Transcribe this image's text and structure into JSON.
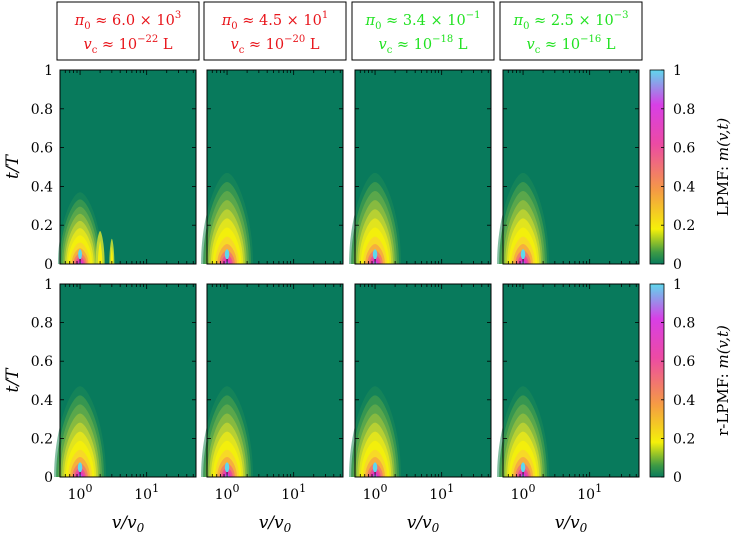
{
  "chart_data": {
    "type": "heatmap",
    "xlabel": "v/v_0",
    "ylabel": "t/T",
    "x_scale": "log",
    "xlim": [
      0.5,
      55
    ],
    "ylim": [
      0,
      1
    ],
    "xticks": [
      1,
      10
    ],
    "yticks": [
      0,
      0.2,
      0.4,
      0.6,
      0.8,
      1
    ],
    "colorbar": {
      "ticks": [
        0,
        0.2,
        0.4,
        0.6,
        0.8,
        1
      ],
      "rows": [
        {
          "label": "LPMF: m(v,t)"
        },
        {
          "label": "r-LPMF: m(v,t)"
        }
      ]
    },
    "colors": {
      "background": "#087a5c",
      "yellow": "#f5f00a",
      "orange": "#f59a45",
      "magenta": "#e532c0",
      "cyan": "#5fd8ec",
      "red_text": "#e8151b",
      "green_text": "#22e222"
    },
    "columns": [
      {
        "pi0_text": "π₀ ≈ 6.0 × 10³",
        "pi0_mant": "6.0",
        "pi0_exp": "3",
        "vc_exp": "−22",
        "text_color": "red"
      },
      {
        "pi0_text": "π₀ ≈ 4.5 × 10¹",
        "pi0_mant": "4.5",
        "pi0_exp": "1",
        "vc_exp": "−20",
        "text_color": "red"
      },
      {
        "pi0_text": "π₀ ≈ 3.4 × 10⁻¹",
        "pi0_mant": "3.4",
        "pi0_exp": "−1",
        "vc_exp": "−18",
        "text_color": "green"
      },
      {
        "pi0_text": "π₀ ≈ 2.5 × 10⁻³",
        "pi0_mant": "2.5",
        "pi0_exp": "−3",
        "vc_exp": "−16",
        "text_color": "green"
      }
    ],
    "peak": {
      "v_over_v0": 1.0,
      "t_over_T": 0.05,
      "value": 1
    },
    "plume_extent_t": {
      "LPMF_col1": 0.37,
      "others": 0.47
    },
    "secondary_peaks_LPMF_col1": [
      {
        "v_over_v0": 2.0,
        "t_max": 0.17
      },
      {
        "v_over_v0": 3.0,
        "t_max": 0.13
      }
    ]
  }
}
